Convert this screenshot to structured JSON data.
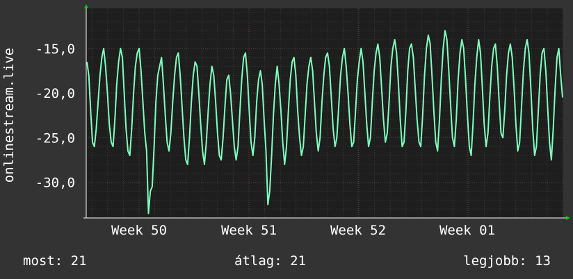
{
  "chart_data": {
    "type": "line",
    "ylabel": "onlinestream.live",
    "y_ticks": [
      "-15,0",
      "-20,0",
      "-25,0",
      "-30,0"
    ],
    "y_tick_values": [
      -15,
      -20,
      -25,
      -30
    ],
    "x_ticks": [
      "Week 50",
      "Week 51",
      "Week 52",
      "Week 01"
    ],
    "ylim": [
      -34,
      -10.5
    ],
    "grid": true,
    "colors": {
      "background": "#333333",
      "plot": "#1e1e1e",
      "grid": "#3c3c3c",
      "line": "#7fffbf",
      "axis": "#ffffff",
      "arrow": "#00cc00"
    },
    "series": [
      {
        "values": [
          -16.5,
          -18,
          -22,
          -25.5,
          -26,
          -24,
          -21,
          -18,
          -16,
          -15,
          -17,
          -20,
          -23.5,
          -25.5,
          -26,
          -23,
          -19,
          -16.5,
          -15,
          -16,
          -20,
          -24,
          -26.5,
          -27,
          -24,
          -20,
          -17,
          -15.5,
          -15,
          -17.5,
          -21,
          -24.5,
          -26.5,
          -33.5,
          -31,
          -30.5,
          -26,
          -21,
          -18,
          -17,
          -16,
          -19,
          -22.5,
          -25.5,
          -26.5,
          -24.5,
          -21,
          -18,
          -16,
          -15.5,
          -18,
          -21.5,
          -25,
          -27.5,
          -28,
          -25,
          -21,
          -18,
          -16.5,
          -17,
          -20,
          -23.5,
          -26.5,
          -28,
          -25.5,
          -22,
          -19,
          -17,
          -18,
          -21,
          -24.5,
          -27,
          -27.5,
          -25,
          -21.5,
          -18.5,
          -18,
          -20,
          -23,
          -26,
          -27.5,
          -26,
          -22,
          -18.5,
          -16,
          -15.5,
          -18,
          -22,
          -25.5,
          -27,
          -25,
          -21,
          -18.5,
          -17.5,
          -19,
          -23,
          -26.5,
          -32.5,
          -31,
          -27,
          -22.5,
          -19,
          -17,
          -19,
          -22,
          -25.5,
          -28,
          -26,
          -22,
          -18.5,
          -16.5,
          -16,
          -18,
          -22,
          -25,
          -27,
          -26,
          -22.5,
          -19,
          -17,
          -16,
          -17.5,
          -21,
          -24.5,
          -26.5,
          -25,
          -21,
          -18,
          -16,
          -15.5,
          -17,
          -20.5,
          -24,
          -26,
          -25,
          -21.5,
          -18,
          -16,
          -15,
          -17,
          -20,
          -23.5,
          -26,
          -25.5,
          -22,
          -18.5,
          -16.5,
          -15,
          -16.5,
          -20,
          -23.5,
          -26,
          -25,
          -21,
          -17.5,
          -15.5,
          -14.5,
          -16,
          -19.5,
          -23,
          -25.5,
          -24.5,
          -21,
          -17,
          -15,
          -14,
          -15.5,
          -19,
          -23,
          -26,
          -25.5,
          -22,
          -17.5,
          -15,
          -14.5,
          -16,
          -19.5,
          -23,
          -25.5,
          -26,
          -22.5,
          -18,
          -15,
          -13.5,
          -14.5,
          -18,
          -22,
          -25.5,
          -26.5,
          -23,
          -18.5,
          -15,
          -13,
          -14,
          -17.5,
          -21.5,
          -25,
          -26,
          -23,
          -18.5,
          -15.5,
          -14,
          -15,
          -18.5,
          -22.5,
          -26,
          -27,
          -23.5,
          -19,
          -16,
          -14,
          -15.5,
          -19.5,
          -23.5,
          -26,
          -24.5,
          -20.5,
          -17,
          -15,
          -14.5,
          -17,
          -21,
          -24.5,
          -25,
          -22,
          -18,
          -15.5,
          -14.5,
          -16,
          -19.5,
          -23.5,
          -26.5,
          -25.5,
          -21.5,
          -17.5,
          -15,
          -14,
          -15.5,
          -19.5,
          -24,
          -27,
          -26,
          -22,
          -18,
          -15.5,
          -15,
          -17.5,
          -21.5,
          -25.5,
          -27.5,
          -24,
          -19.5,
          -16,
          -15,
          -18,
          -20.5
        ]
      }
    ]
  },
  "footer": {
    "current": "most: 21",
    "average": "átlag: 21",
    "best": "legjobb: 13"
  }
}
